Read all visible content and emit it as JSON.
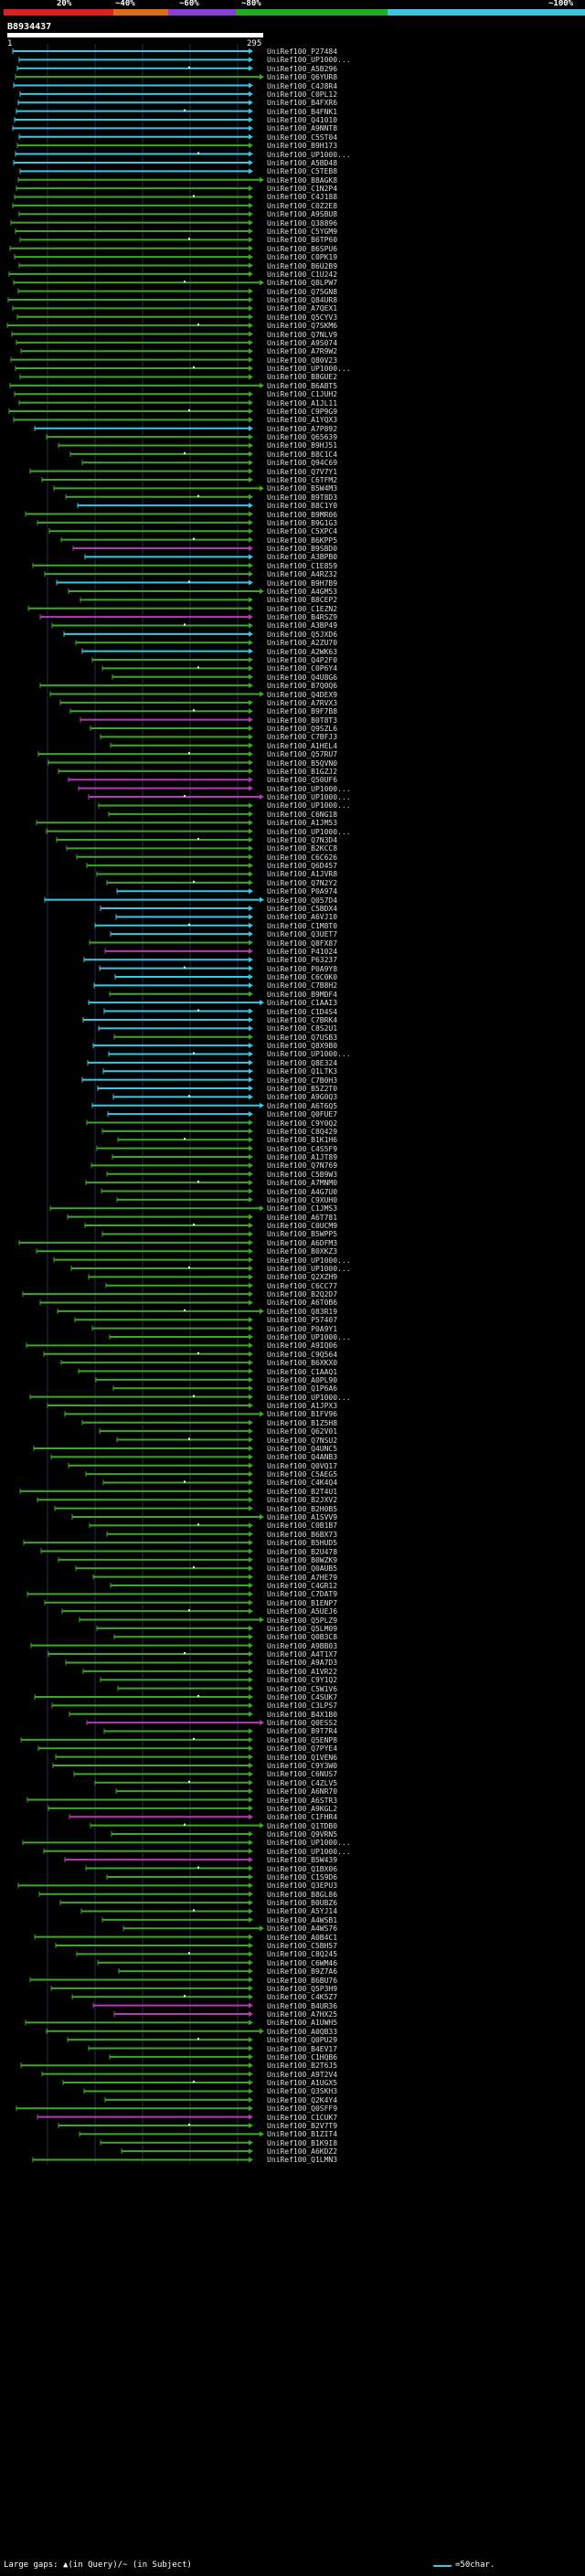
{
  "scale": {
    "labels": [
      "20%",
      "~40%",
      "~60%",
      "~80%",
      "~100%"
    ],
    "bands": [
      {
        "color": "#e02020"
      },
      {
        "color": "#e06c18"
      },
      {
        "color": "#8a3ed8"
      },
      {
        "color": "#1fae1f"
      },
      {
        "color": "#39c8e0"
      }
    ]
  },
  "query": {
    "id": "B8934437",
    "start": "1",
    "end": "295"
  },
  "legend": {
    "large_gaps": "Large gaps: ▲(in Query)/~ (in Subject)",
    "scale_note": "=50char."
  },
  "colors": {
    "cyan": "#39c8e0",
    "green": "#3ea628",
    "purple": "#b33ab3",
    "grid": "#2a2a55"
  },
  "hits": [
    {
      "label": "UniRef100_P27484",
      "color": "cyan"
    },
    {
      "label": "UniRef100_UP1000...",
      "color": "cyan"
    },
    {
      "label": "UniRef100_A5B296",
      "color": "cyan"
    },
    {
      "label": "UniRef100_Q6YUR8",
      "color": "green"
    },
    {
      "label": "UniRef100_C4J8R4",
      "color": "cyan"
    },
    {
      "label": "UniRef100_C0PL12",
      "color": "cyan"
    },
    {
      "label": "UniRef100_B4FXR6",
      "color": "cyan"
    },
    {
      "label": "UniRef100_B4FNK1",
      "color": "cyan"
    },
    {
      "label": "UniRef100_Q41010",
      "color": "cyan"
    },
    {
      "label": "UniRef100_A9NNT8",
      "color": "cyan"
    },
    {
      "label": "UniRef100_C5ST04",
      "color": "cyan"
    },
    {
      "label": "UniRef100_B9H173",
      "color": "green"
    },
    {
      "label": "UniRef100_UP1000...",
      "color": "cyan"
    },
    {
      "label": "UniRef100_A5BD48",
      "color": "cyan"
    },
    {
      "label": "UniRef100_C5TEB8",
      "color": "cyan"
    },
    {
      "label": "UniRef100_B8AGK8",
      "color": "green"
    },
    {
      "label": "UniRef100_C1N2P4",
      "color": "green"
    },
    {
      "label": "UniRef100_C4J188",
      "color": "green"
    },
    {
      "label": "UniRef100_C0Z2E8",
      "color": "green"
    },
    {
      "label": "UniRef100_A9SBU8",
      "color": "green"
    },
    {
      "label": "UniRef100_Q38896",
      "color": "green"
    },
    {
      "label": "UniRef100_C5YGM9",
      "color": "green"
    },
    {
      "label": "UniRef100_B6TP60",
      "color": "green"
    },
    {
      "label": "UniRef100_B6SPU6",
      "color": "green"
    },
    {
      "label": "UniRef100_C0PK19",
      "color": "green"
    },
    {
      "label": "UniRef100_B6U2B9",
      "color": "green"
    },
    {
      "label": "UniRef100_C1U242",
      "color": "green"
    },
    {
      "label": "UniRef100_Q8LPW7",
      "color": "green"
    },
    {
      "label": "UniRef100_Q75GN8",
      "color": "green"
    },
    {
      "label": "UniRef100_Q84UR8",
      "color": "green"
    },
    {
      "label": "UniRef100_A7QEX1",
      "color": "green"
    },
    {
      "label": "UniRef100_Q5CYV3",
      "color": "green"
    },
    {
      "label": "UniRef100_Q7SKM6",
      "color": "green"
    },
    {
      "label": "UniRef100_Q7NLV9",
      "color": "green"
    },
    {
      "label": "UniRef100_A9S074",
      "color": "green"
    },
    {
      "label": "UniRef100_A7R9W2",
      "color": "green"
    },
    {
      "label": "UniRef100_Q80V23",
      "color": "green"
    },
    {
      "label": "UniRef100_UP1000...",
      "color": "green"
    },
    {
      "label": "UniRef100_B8GUE2",
      "color": "green"
    },
    {
      "label": "UniRef100_B6ABT5",
      "color": "green"
    },
    {
      "label": "UniRef100_C1JUH2",
      "color": "green"
    },
    {
      "label": "UniRef100_A1JL11",
      "color": "green"
    },
    {
      "label": "UniRef100_C9P9G9",
      "color": "green"
    },
    {
      "label": "UniRef100_A1YQX3",
      "color": "green"
    },
    {
      "label": "UniRef100_A7P892",
      "color": "cyan"
    },
    {
      "label": "UniRef100_Q65639",
      "color": "green"
    },
    {
      "label": "UniRef100_B9HJ51",
      "color": "green"
    },
    {
      "label": "UniRef100_B8C1C4",
      "color": "green"
    },
    {
      "label": "UniRef100_Q94C69",
      "color": "green"
    },
    {
      "label": "UniRef100_Q7V7Y1",
      "color": "green"
    },
    {
      "label": "UniRef100_C6TFM2",
      "color": "green"
    },
    {
      "label": "UniRef100_B5W4M3",
      "color": "green"
    },
    {
      "label": "UniRef100_B9T8D3",
      "color": "green"
    },
    {
      "label": "UniRef100_B8C1Y0",
      "color": "cyan"
    },
    {
      "label": "UniRef100_B9MR06",
      "color": "green"
    },
    {
      "label": "UniRef100_B9G1G3",
      "color": "green"
    },
    {
      "label": "UniRef100_C5XPC4",
      "color": "green"
    },
    {
      "label": "UniRef100_B6KPP5",
      "color": "green"
    },
    {
      "label": "UniRef100_B9SBD0",
      "color": "purple"
    },
    {
      "label": "UniRef100_A3BPB0",
      "color": "cyan"
    },
    {
      "label": "UniRef100_C1E859",
      "color": "green"
    },
    {
      "label": "UniRef100_A4RZ32",
      "color": "green"
    },
    {
      "label": "UniRef100_B9H7B9",
      "color": "cyan"
    },
    {
      "label": "UniRef100_A4GM53",
      "color": "green"
    },
    {
      "label": "UniRef100_B8CEP2",
      "color": "green"
    },
    {
      "label": "UniRef100_C1EZN2",
      "color": "green"
    },
    {
      "label": "UniRef100_B4RSZ9",
      "color": "purple"
    },
    {
      "label": "UniRef100_A3BP49",
      "color": "green"
    },
    {
      "label": "UniRef100_Q5JXD6",
      "color": "cyan"
    },
    {
      "label": "UniRef100_A2ZU70",
      "color": "green"
    },
    {
      "label": "UniRef100_A2WK63",
      "color": "cyan"
    },
    {
      "label": "UniRef100_Q4P2F0",
      "color": "green"
    },
    {
      "label": "UniRef100_C0P6Y4",
      "color": "green"
    },
    {
      "label": "UniRef100_Q4U8G6",
      "color": "green"
    },
    {
      "label": "UniRef100_B7Q0Q6",
      "color": "green"
    },
    {
      "label": "UniRef100_Q4DEX9",
      "color": "green"
    },
    {
      "label": "UniRef100_A7RVX3",
      "color": "green"
    },
    {
      "label": "UniRef100_B9F7B8",
      "color": "green"
    },
    {
      "label": "UniRef100_B0T8T3",
      "color": "purple"
    },
    {
      "label": "UniRef100_Q9SZL6",
      "color": "green"
    },
    {
      "label": "UniRef100_C7BFJ3",
      "color": "green"
    },
    {
      "label": "UniRef100_A1HEL4",
      "color": "green"
    },
    {
      "label": "UniRef100_Q57RU7",
      "color": "green"
    },
    {
      "label": "UniRef100_B5QVN0",
      "color": "green"
    },
    {
      "label": "UniRef100_B1GZJ2",
      "color": "green"
    },
    {
      "label": "UniRef100_Q50UF6",
      "color": "purple"
    },
    {
      "label": "UniRef100_UP1000...",
      "color": "purple"
    },
    {
      "label": "UniRef100_UP1000...",
      "color": "purple"
    },
    {
      "label": "UniRef100_UP1000...",
      "color": "green"
    },
    {
      "label": "UniRef100_C6NG18",
      "color": "green"
    },
    {
      "label": "UniRef100_A1JM53",
      "color": "green"
    },
    {
      "label": "UniRef100_UP1000...",
      "color": "green"
    },
    {
      "label": "UniRef100_Q7N3D4",
      "color": "green"
    },
    {
      "label": "UniRef100_B2KCC8",
      "color": "green"
    },
    {
      "label": "UniRef100_C6C626",
      "color": "green"
    },
    {
      "label": "UniRef100_Q6D457",
      "color": "green"
    },
    {
      "label": "UniRef100_A1JVR8",
      "color": "green"
    },
    {
      "label": "UniRef100_Q7N2Y2",
      "color": "green"
    },
    {
      "label": "UniRef100_P0A974",
      "color": "cyan"
    },
    {
      "label": "UniRef100_Q057D4",
      "color": "cyan"
    },
    {
      "label": "UniRef100_C5BDX4",
      "color": "cyan"
    },
    {
      "label": "UniRef100_A6VJ10",
      "color": "cyan"
    },
    {
      "label": "UniRef100_C1M8T0",
      "color": "cyan"
    },
    {
      "label": "UniRef100_Q3UET7",
      "color": "cyan"
    },
    {
      "label": "UniRef100_Q8FX87",
      "color": "green"
    },
    {
      "label": "UniRef100_P41024",
      "color": "purple"
    },
    {
      "label": "UniRef100_P63237",
      "color": "cyan"
    },
    {
      "label": "UniRef100_P0A9Y8",
      "color": "cyan"
    },
    {
      "label": "UniRef100_C6C0K0",
      "color": "cyan"
    },
    {
      "label": "UniRef100_C7B8H2",
      "color": "cyan"
    },
    {
      "label": "UniRef100_B9MDF4",
      "color": "green"
    },
    {
      "label": "UniRef100_C1AAI3",
      "color": "cyan"
    },
    {
      "label": "UniRef100_C1D4S4",
      "color": "cyan"
    },
    {
      "label": "UniRef100_C7BRK4",
      "color": "cyan"
    },
    {
      "label": "UniRef100_C8S2U1",
      "color": "cyan"
    },
    {
      "label": "UniRef100_Q7USB3",
      "color": "green"
    },
    {
      "label": "UniRef100_Q8X9B0",
      "color": "cyan"
    },
    {
      "label": "UniRef100_UP1000...",
      "color": "cyan"
    },
    {
      "label": "UniRef100_Q8E324",
      "color": "cyan"
    },
    {
      "label": "UniRef100_Q1LTK3",
      "color": "cyan"
    },
    {
      "label": "UniRef100_C7B0H3",
      "color": "cyan"
    },
    {
      "label": "UniRef100_B5Z2T0",
      "color": "cyan"
    },
    {
      "label": "UniRef100_A9G0Q3",
      "color": "cyan"
    },
    {
      "label": "UniRef100_A6T6Q5",
      "color": "cyan"
    },
    {
      "label": "UniRef100_Q0FUE7",
      "color": "cyan"
    },
    {
      "label": "UniRef100_C9Y0Q2",
      "color": "green"
    },
    {
      "label": "UniRef100_C8Q429",
      "color": "green"
    },
    {
      "label": "UniRef100_B1K1H6",
      "color": "green"
    },
    {
      "label": "UniRef100_C4S5F9",
      "color": "green"
    },
    {
      "label": "UniRef100_A1JT89",
      "color": "green"
    },
    {
      "label": "UniRef100_Q7N769",
      "color": "green"
    },
    {
      "label": "UniRef100_C5B9W3",
      "color": "green"
    },
    {
      "label": "UniRef100_A7MNM0",
      "color": "green"
    },
    {
      "label": "UniRef100_A4G7U0",
      "color": "green"
    },
    {
      "label": "UniRef100_C9XUH0",
      "color": "green"
    },
    {
      "label": "UniRef100_C1JMS3",
      "color": "green"
    },
    {
      "label": "UniRef100_A6T781",
      "color": "green"
    },
    {
      "label": "UniRef100_C0UCM9",
      "color": "green"
    },
    {
      "label": "UniRef100_B5WPP5",
      "color": "green"
    },
    {
      "label": "UniRef100_A6DFM3",
      "color": "green"
    },
    {
      "label": "UniRef100_B0XKZ3",
      "color": "green"
    },
    {
      "label": "UniRef100_UP1000...",
      "color": "green"
    },
    {
      "label": "UniRef100_UP1000...",
      "color": "green"
    },
    {
      "label": "UniRef100_Q2XZH9",
      "color": "green"
    },
    {
      "label": "UniRef100_C6CC77",
      "color": "green"
    },
    {
      "label": "UniRef100_B2Q2D7",
      "color": "green"
    },
    {
      "label": "UniRef100_A6T0B6",
      "color": "green"
    },
    {
      "label": "UniRef100_Q83R19",
      "color": "green"
    },
    {
      "label": "UniRef100_P57407",
      "color": "green"
    },
    {
      "label": "UniRef100_P0A9Y1",
      "color": "green"
    },
    {
      "label": "UniRef100_UP1000...",
      "color": "green"
    },
    {
      "label": "UniRef100_A9IQ06",
      "color": "green"
    },
    {
      "label": "UniRef100_C9Q564",
      "color": "green"
    },
    {
      "label": "UniRef100_B6XKX0",
      "color": "green"
    },
    {
      "label": "UniRef100_C1AAQ1",
      "color": "green"
    },
    {
      "label": "UniRef100_A0PL90",
      "color": "green"
    },
    {
      "label": "UniRef100_Q1P6A6",
      "color": "green"
    },
    {
      "label": "UniRef100_UP1000...",
      "color": "green"
    },
    {
      "label": "UniRef100_A1JPX3",
      "color": "green"
    },
    {
      "label": "UniRef100_B1FV96",
      "color": "green"
    },
    {
      "label": "UniRef100_B1Z5H8",
      "color": "green"
    },
    {
      "label": "UniRef100_Q62V01",
      "color": "green"
    },
    {
      "label": "UniRef100_Q7NSU2",
      "color": "green"
    },
    {
      "label": "UniRef100_Q4UNC5",
      "color": "green"
    },
    {
      "label": "UniRef100_Q4ANB3",
      "color": "green"
    },
    {
      "label": "UniRef100_Q0VQ17",
      "color": "green"
    },
    {
      "label": "UniRef100_C5AEG5",
      "color": "green"
    },
    {
      "label": "UniRef100_C4K4Q4",
      "color": "green"
    },
    {
      "label": "UniRef100_B2T4U1",
      "color": "green"
    },
    {
      "label": "UniRef100_B2JXV2",
      "color": "green"
    },
    {
      "label": "UniRef100_B2H0B5",
      "color": "green"
    },
    {
      "label": "UniRef100_A1SVV9",
      "color": "green"
    },
    {
      "label": "UniRef100_C0B1B7",
      "color": "green"
    },
    {
      "label": "UniRef100_B6BX73",
      "color": "green"
    },
    {
      "label": "UniRef100_B5HUD5",
      "color": "green"
    },
    {
      "label": "UniRef100_B2U478",
      "color": "green"
    },
    {
      "label": "UniRef100_B0WZK9",
      "color": "green"
    },
    {
      "label": "UniRef100_Q0AUB5",
      "color": "green"
    },
    {
      "label": "UniRef100_A7HE79",
      "color": "green"
    },
    {
      "label": "UniRef100_C4GR12",
      "color": "green"
    },
    {
      "label": "UniRef100_C7DAT9",
      "color": "green"
    },
    {
      "label": "UniRef100_B1ENP7",
      "color": "green"
    },
    {
      "label": "UniRef100_A5UEJ6",
      "color": "green"
    },
    {
      "label": "UniRef100_Q5PLZ9",
      "color": "green"
    },
    {
      "label": "UniRef100_Q5LM09",
      "color": "green"
    },
    {
      "label": "UniRef100_Q0B3C8",
      "color": "green"
    },
    {
      "label": "UniRef100_A9BB03",
      "color": "green"
    },
    {
      "label": "UniRef100_A4T1X7",
      "color": "green"
    },
    {
      "label": "UniRef100_A9A7D3",
      "color": "green"
    },
    {
      "label": "UniRef100_A1VR22",
      "color": "green"
    },
    {
      "label": "UniRef100_C9Y1Q2",
      "color": "green"
    },
    {
      "label": "UniRef100_C5W1V6",
      "color": "green"
    },
    {
      "label": "UniRef100_C4SUK7",
      "color": "green"
    },
    {
      "label": "UniRef100_C3LPS7",
      "color": "green"
    },
    {
      "label": "UniRef100_B4X1B0",
      "color": "green"
    },
    {
      "label": "UniRef100_Q0ESS2",
      "color": "purple"
    },
    {
      "label": "UniRef100_B9T7R4",
      "color": "green"
    },
    {
      "label": "UniRef100_Q5ENP8",
      "color": "green"
    },
    {
      "label": "UniRef100_Q7PYE4",
      "color": "green"
    },
    {
      "label": "UniRef100_Q1VEN6",
      "color": "green"
    },
    {
      "label": "UniRef100_C9Y3W0",
      "color": "green"
    },
    {
      "label": "UniRef100_C6NUS7",
      "color": "green"
    },
    {
      "label": "UniRef100_C4ZLV5",
      "color": "green"
    },
    {
      "label": "UniRef100_A6NR70",
      "color": "green"
    },
    {
      "label": "UniRef100_A6STR3",
      "color": "green"
    },
    {
      "label": "UniRef100_A9KGL2",
      "color": "green"
    },
    {
      "label": "UniRef100_C1FHR4",
      "color": "purple"
    },
    {
      "label": "UniRef100_Q1TDB0",
      "color": "green"
    },
    {
      "label": "UniRef100_Q9VRN5",
      "color": "green"
    },
    {
      "label": "UniRef100_UP1000...",
      "color": "green"
    },
    {
      "label": "UniRef100_UP1000...",
      "color": "green"
    },
    {
      "label": "UniRef100_B5W439",
      "color": "purple"
    },
    {
      "label": "UniRef100_Q1BX06",
      "color": "green"
    },
    {
      "label": "UniRef100_C1S9D6",
      "color": "green"
    },
    {
      "label": "UniRef100_Q3EPU3",
      "color": "green"
    },
    {
      "label": "UniRef100_B8GL86",
      "color": "green"
    },
    {
      "label": "UniRef100_B0UBZ6",
      "color": "green"
    },
    {
      "label": "UniRef100_A5YJ14",
      "color": "green"
    },
    {
      "label": "UniRef100_A4WSB1",
      "color": "green"
    },
    {
      "label": "UniRef100_A4WS76",
      "color": "green"
    },
    {
      "label": "UniRef100_A0B4C1",
      "color": "green"
    },
    {
      "label": "UniRef100_C5BH57",
      "color": "green"
    },
    {
      "label": "UniRef100_C8Q245",
      "color": "green"
    },
    {
      "label": "UniRef100_C6WM46",
      "color": "green"
    },
    {
      "label": "UniRef100_B9Z7A6",
      "color": "green"
    },
    {
      "label": "UniRef100_B6BU76",
      "color": "green"
    },
    {
      "label": "UniRef100_Q5P3H9",
      "color": "green"
    },
    {
      "label": "UniRef100_C4K5Z7",
      "color": "green"
    },
    {
      "label": "UniRef100_B4UR36",
      "color": "purple"
    },
    {
      "label": "UniRef100_A7HX25",
      "color": "purple"
    },
    {
      "label": "UniRef100_A1UWH5",
      "color": "green"
    },
    {
      "label": "UniRef100_A0QB33",
      "color": "green"
    },
    {
      "label": "UniRef100_Q0PU29",
      "color": "green"
    },
    {
      "label": "UniRef100_B4EV17",
      "color": "green"
    },
    {
      "label": "UniRef100_C1HQB6",
      "color": "green"
    },
    {
      "label": "UniRef100_B2T6J5",
      "color": "green"
    },
    {
      "label": "UniRef100_A9T2V4",
      "color": "green"
    },
    {
      "label": "UniRef100_A1UGX5",
      "color": "green"
    },
    {
      "label": "UniRef100_Q3SKH3",
      "color": "green"
    },
    {
      "label": "UniRef100_Q2K4Y4",
      "color": "green"
    },
    {
      "label": "UniRef100_Q0SFF9",
      "color": "green"
    },
    {
      "label": "UniRef100_C1CUK7",
      "color": "purple"
    },
    {
      "label": "UniRef100_B2V7T9",
      "color": "green"
    },
    {
      "label": "UniRef100_B1ZIT4",
      "color": "green"
    },
    {
      "label": "UniRef100_B1K9I8",
      "color": "green"
    },
    {
      "label": "UniRef100_A6KDZ2",
      "color": "green"
    },
    {
      "label": "UniRef100_Q1LMN3",
      "color": "green"
    }
  ]
}
